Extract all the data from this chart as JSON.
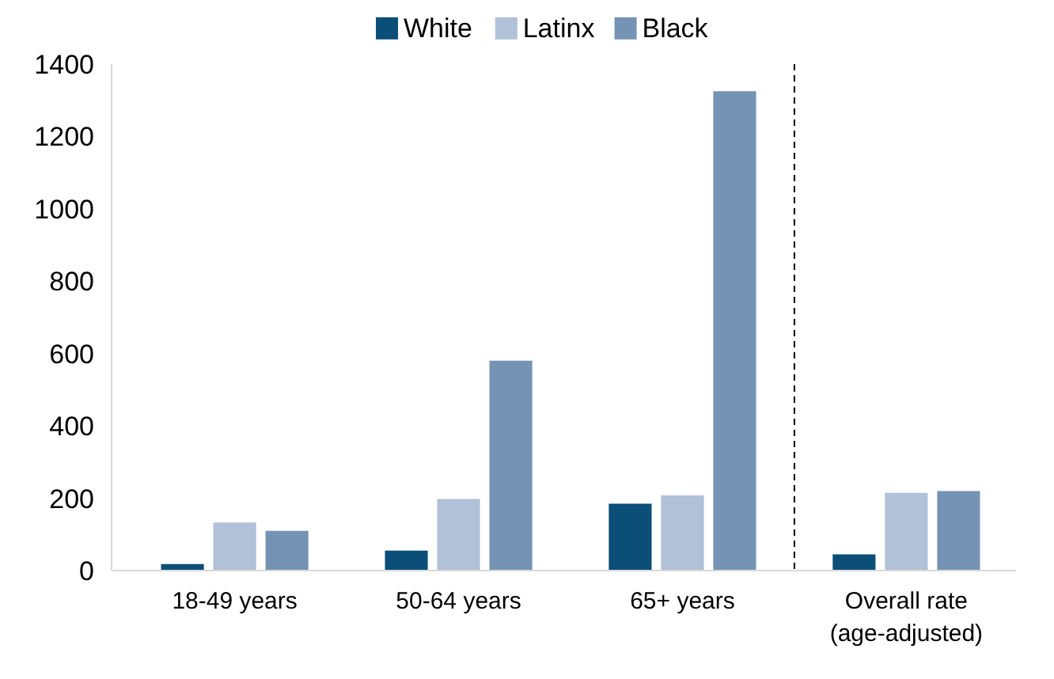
{
  "chart_data": {
    "type": "bar",
    "categories": [
      "18-49 years",
      "50-64 years",
      "65+ years",
      "Overall rate (age-adjusted)"
    ],
    "series": [
      {
        "name": "White",
        "color": "#0b4f78",
        "values": [
          18,
          55,
          185,
          45
        ]
      },
      {
        "name": "Latinx",
        "color": "#b0c1d8",
        "values": [
          133,
          198,
          208,
          215
        ]
      },
      {
        "name": "Black",
        "color": "#7594b5",
        "values": [
          110,
          580,
          1325,
          220
        ]
      }
    ],
    "ylim": [
      0,
      1400
    ],
    "yticks": [
      0,
      200,
      400,
      600,
      800,
      1000,
      1200,
      1400
    ],
    "grid": false,
    "legend": "top"
  }
}
